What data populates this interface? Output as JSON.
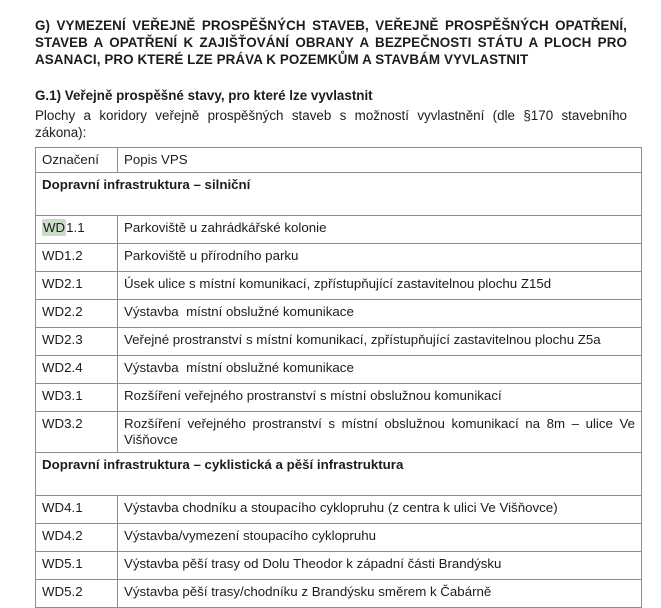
{
  "page": {
    "main_heading": "G) VYMEZENÍ VEŘEJNĚ PROSPĚŠNÝCH STAVEB, VEŘEJNĚ PROSPĚŠNÝCH OPATŘENÍ, STAVEB A OPATŘENÍ K ZAJIŠŤOVÁNÍ OBRANY A BEZPEČNOSTI STÁTU A PLOCH PRO ASANACI, PRO KTERÉ LZE PRÁVA K POZEMKŮM A STAVBÁM VYVLASTNIT",
    "sub_heading": "G.1) Veřejně prospěšné stavy, pro které lze vyvlastnit",
    "intro": "Plochy a koridory veřejně prospěšných staveb s možností vyvlastnění (dle §170 stavebního zákona):"
  },
  "table": {
    "columns": [
      "Označení",
      "Popis VPS"
    ],
    "highlight": {
      "cell": "WD1.1",
      "highlighted_part": "WD",
      "remainder": "1.1",
      "color": "#c8dcc6"
    },
    "sections": [
      {
        "title": "Dopravní infrastruktura – silniční",
        "rows": [
          {
            "code": "WD1.1",
            "desc": "Parkoviště u zahrádkářské kolonie"
          },
          {
            "code": "WD1.2",
            "desc": "Parkoviště u přírodního parku"
          },
          {
            "code": "WD2.1",
            "desc": "Úsek ulice s místní komunikací, zpřístupňující zastavitelnou plochu Z15d"
          },
          {
            "code": "WD2.2",
            "desc": "Výstavba  místní obslužné komunikace"
          },
          {
            "code": "WD2.3",
            "desc": "Veřejné prostranství s místní komunikací, zpřístupňující zastavitelnou plochu Z5a"
          },
          {
            "code": "WD2.4",
            "desc": "Výstavba  místní obslužné komunikace"
          },
          {
            "code": "WD3.1",
            "desc": "Rozšíření veřejného prostranství s místní obslužnou komunikací"
          },
          {
            "code": "WD3.2",
            "desc": "Rozšíření veřejného prostranství s místní obslužnou komunikací na 8m – ulice Ve Višňovce"
          }
        ]
      },
      {
        "title": "Dopravní infrastruktura – cyklistická a pěší infrastruktura",
        "rows": [
          {
            "code": "WD4.1",
            "desc": "Výstavba chodníku a stoupacího cyklopruhu (z centra k ulici Ve Višňovce)"
          },
          {
            "code": "WD4.2",
            "desc": "Výstavba/vymezení stoupacího cyklopruhu"
          },
          {
            "code": "WD5.1",
            "desc": "Výstavba pěší trasy od Dolu Theodor k západní části Brandýsku"
          },
          {
            "code": "WD5.2",
            "desc": "Výstavba pěší trasy/chodníku z Brandýsku směrem k Čabárně"
          }
        ]
      }
    ]
  },
  "colors": {
    "text": "#1c1c1c",
    "table_border": "#8e8e8e",
    "search_highlight": "#c8dcc6",
    "background": "#ffffff"
  }
}
